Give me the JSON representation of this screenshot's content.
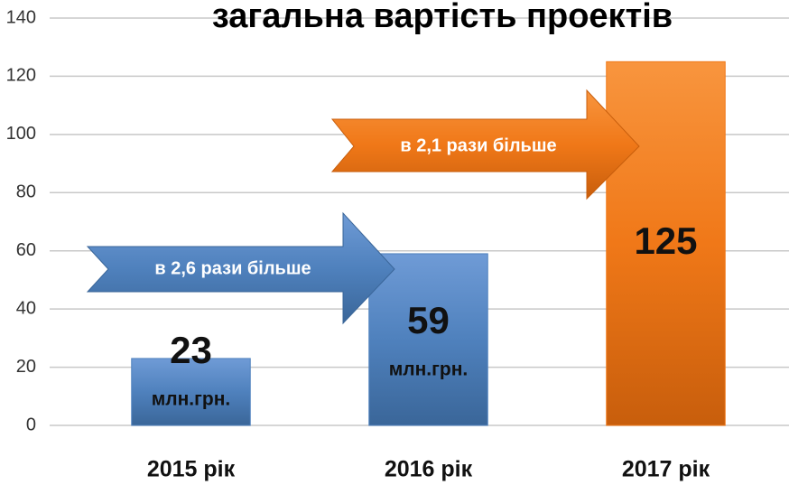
{
  "chart_data": {
    "type": "bar",
    "title": "загальна вартість проектів",
    "categories": [
      "2015 рік",
      "2016 рік",
      "2017 рік"
    ],
    "values": [
      23,
      59,
      125
    ],
    "unit_labels": [
      "млн.грн.",
      "млн.грн.",
      null
    ],
    "colors": [
      "#4f81bd",
      "#4f81bd",
      "#f07818"
    ],
    "annotations": [
      "в 2,6 рази більше",
      "в 2,1 рази більше"
    ],
    "ylim": [
      0,
      140
    ],
    "yticks": [
      0,
      20,
      40,
      60,
      80,
      100,
      120,
      140
    ],
    "grid": true
  }
}
